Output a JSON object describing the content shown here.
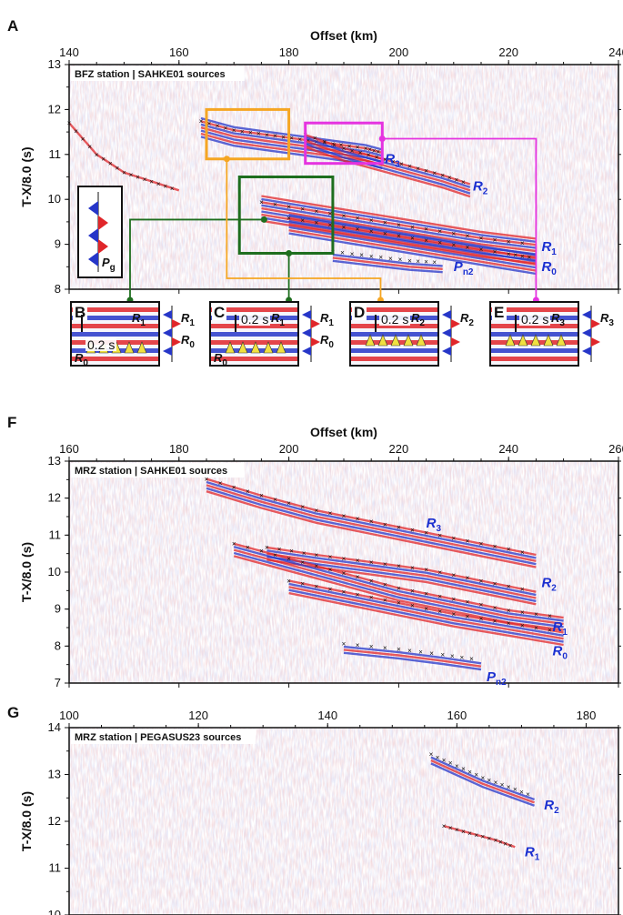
{
  "panels": {
    "A": {
      "letter": "A",
      "tag": "BFZ station | SAHKE01 sources",
      "xlabel": "Offset (km)",
      "ylabel": "T-X/8.0 (s)",
      "xticks": [
        "140",
        "160",
        "180",
        "200",
        "220",
        "240"
      ],
      "yticks": [
        "8",
        "9",
        "10",
        "11",
        "12",
        "13"
      ],
      "phases": {
        "R3": {
          "base": "R",
          "sub": "3"
        },
        "R2": {
          "base": "R",
          "sub": "2"
        },
        "R1": {
          "base": "R",
          "sub": "1"
        },
        "R0": {
          "base": "R",
          "sub": "0"
        },
        "Pn2": {
          "base": "P",
          "sub": "n2"
        },
        "Pg": {
          "base": "P",
          "sub": "g"
        }
      }
    },
    "insets": [
      {
        "letter": "B",
        "scale": "0.2 s",
        "labels": [
          {
            "base": "R",
            "sub": "1"
          },
          {
            "base": "R",
            "sub": "0"
          }
        ],
        "trace_labels": [
          {
            "base": "R",
            "sub": "1"
          },
          {
            "base": "R",
            "sub": "0"
          }
        ]
      },
      {
        "letter": "C",
        "scale": "0.2 s",
        "labels": [
          {
            "base": "R",
            "sub": "1"
          },
          {
            "base": "R",
            "sub": "0"
          }
        ],
        "trace_labels": [
          {
            "base": "R",
            "sub": "1"
          },
          {
            "base": "R",
            "sub": "0"
          }
        ]
      },
      {
        "letter": "D",
        "scale": "0.2 s",
        "labels": [
          {
            "base": "R",
            "sub": "2"
          }
        ],
        "trace_labels": [
          {
            "base": "R",
            "sub": "2"
          }
        ]
      },
      {
        "letter": "E",
        "scale": "0.2 s",
        "labels": [
          {
            "base": "R",
            "sub": "3"
          }
        ],
        "trace_labels": [
          {
            "base": "R",
            "sub": "3"
          }
        ]
      }
    ],
    "F": {
      "letter": "F",
      "tag": "MRZ station | SAHKE01 sources",
      "xlabel": "Offset (km)",
      "ylabel": "T-X/8.0 (s)",
      "xticks": [
        "160",
        "180",
        "200",
        "220",
        "240",
        "260"
      ],
      "yticks": [
        "7",
        "8",
        "9",
        "10",
        "11",
        "12",
        "13"
      ],
      "phases": {
        "R3": {
          "base": "R",
          "sub": "3"
        },
        "R2": {
          "base": "R",
          "sub": "2"
        },
        "R1": {
          "base": "R",
          "sub": "1"
        },
        "R0": {
          "base": "R",
          "sub": "0"
        },
        "Pn2": {
          "base": "P",
          "sub": "n2"
        }
      }
    },
    "G": {
      "letter": "G",
      "tag": "MRZ station | PEGASUS23 sources",
      "ylabel": "T-X/8.0 (s)",
      "xticks": [
        "100",
        "120",
        "140",
        "160",
        "180"
      ],
      "yticks": [
        "10",
        "11",
        "12",
        "13",
        "14"
      ],
      "phases": {
        "R2": {
          "base": "R",
          "sub": "2"
        },
        "R1": {
          "base": "R",
          "sub": "1"
        }
      }
    }
  },
  "colors": {
    "positive": "#e0262a",
    "negative": "#2636c8",
    "box_orange": "#f5a623",
    "box_magenta": "#e533e0",
    "box_green": "#1e6e1e",
    "phase_label": "#1a2fd0",
    "pick_marker": "#111111",
    "onset_triangle": "#f0e040"
  },
  "chart_data": [
    {
      "panel": "A",
      "type": "scatter",
      "xlabel": "Offset (km)",
      "ylabel": "T-X/8.0 (s)",
      "xlim": [
        140,
        240
      ],
      "ylim": [
        8,
        13
      ],
      "y_inverted": true,
      "series": [
        {
          "name": "R3",
          "x": [
            164,
            170,
            176,
            182,
            188,
            194,
            197
          ],
          "y": [
            11.6,
            11.4,
            11.3,
            11.2,
            11.1,
            11.0,
            10.9
          ]
        },
        {
          "name": "R2",
          "x": [
            183,
            190,
            196,
            202,
            208,
            213
          ],
          "y": [
            11.3,
            11.0,
            10.8,
            10.6,
            10.4,
            10.2
          ]
        },
        {
          "name": "R1",
          "x": [
            175,
            185,
            195,
            205,
            215,
            225
          ],
          "y": [
            9.8,
            9.6,
            9.4,
            9.2,
            9.0,
            8.85
          ]
        },
        {
          "name": "R0",
          "x": [
            180,
            190,
            200,
            210,
            220,
            225
          ],
          "y": [
            9.45,
            9.25,
            9.05,
            8.85,
            8.65,
            8.55
          ]
        },
        {
          "name": "Pn2",
          "x": [
            188,
            195,
            202,
            208
          ],
          "y": [
            8.7,
            8.6,
            8.5,
            8.45
          ]
        },
        {
          "name": "Pg",
          "x": [
            140,
            145,
            150,
            155,
            160
          ],
          "y": [
            11.7,
            11.0,
            10.6,
            10.4,
            10.2
          ]
        }
      ],
      "boxes": [
        {
          "color": "orange",
          "xlim": [
            165,
            180
          ],
          "ylim": [
            10.9,
            12.0
          ],
          "inset": "D"
        },
        {
          "color": "magenta",
          "xlim": [
            183,
            197
          ],
          "ylim": [
            10.8,
            11.7
          ],
          "inset": "E"
        },
        {
          "color": "green",
          "xlim": [
            171,
            188
          ],
          "ylim": [
            8.8,
            10.5
          ],
          "inset": "B,C"
        }
      ]
    },
    {
      "panel": "F",
      "type": "scatter",
      "xlabel": "Offset (km)",
      "ylabel": "T-X/8.0 (s)",
      "xlim": [
        160,
        260
      ],
      "ylim": [
        7,
        13
      ],
      "y_inverted": true,
      "series": [
        {
          "name": "R3",
          "x": [
            185,
            195,
            205,
            215,
            225,
            235,
            245
          ],
          "y": [
            12.35,
            11.9,
            11.5,
            11.2,
            10.9,
            10.6,
            10.3
          ]
        },
        {
          "name": "R2",
          "x": [
            196,
            205,
            215,
            225,
            235,
            245
          ],
          "y": [
            10.5,
            10.3,
            10.1,
            9.9,
            9.6,
            9.3
          ]
        },
        {
          "name": "R1",
          "x": [
            190,
            200,
            210,
            220,
            230,
            240,
            250
          ],
          "y": [
            10.6,
            10.2,
            9.8,
            9.4,
            9.1,
            8.8,
            8.6
          ]
        },
        {
          "name": "R0",
          "x": [
            200,
            210,
            220,
            230,
            240,
            250
          ],
          "y": [
            9.6,
            9.3,
            9.0,
            8.7,
            8.45,
            8.2
          ]
        },
        {
          "name": "Pn2",
          "x": [
            210,
            220,
            228,
            235
          ],
          "y": [
            7.9,
            7.75,
            7.6,
            7.45
          ]
        }
      ]
    },
    {
      "panel": "G",
      "type": "scatter",
      "ylabel": "T-X/8.0 (s)",
      "xlim": [
        100,
        185
      ],
      "ylim": [
        10,
        14
      ],
      "y_inverted": true,
      "series": [
        {
          "name": "R2",
          "x": [
            156,
            160,
            164,
            168,
            172
          ],
          "y": [
            13.3,
            13.05,
            12.8,
            12.6,
            12.4
          ]
        },
        {
          "name": "R1",
          "x": [
            158,
            162,
            166,
            169
          ],
          "y": [
            11.9,
            11.75,
            11.6,
            11.45
          ]
        }
      ]
    }
  ]
}
